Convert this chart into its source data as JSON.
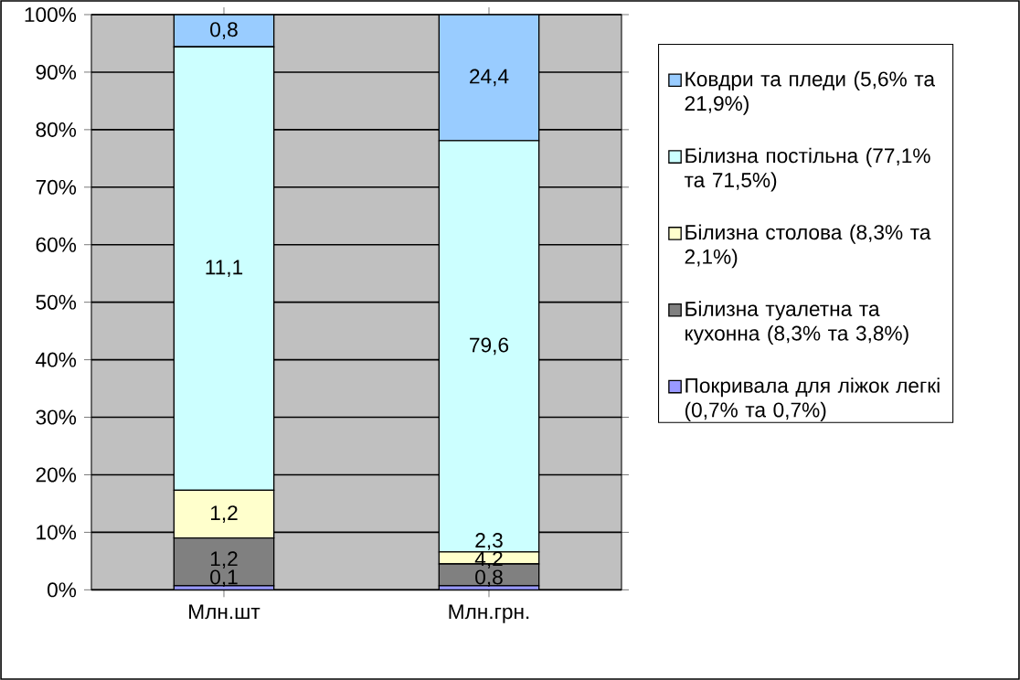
{
  "chart_data": {
    "type": "bar",
    "stacked": true,
    "categories": [
      "Млн.шт",
      "Млн.грн."
    ],
    "series": [
      {
        "name": "Покривала для ліжок легкі (0,7% та 0,7%)",
        "color": "#9999ff",
        "values": [
          0.7,
          0.7
        ]
      },
      {
        "name": "Білизна туалетна та кухонна (8,3% та 3,8%)",
        "color": "#808080",
        "values": [
          8.3,
          3.8
        ]
      },
      {
        "name": "Білизна столова (8,3% та 2,1%)",
        "color": "#ffffcc",
        "values": [
          8.3,
          2.1
        ]
      },
      {
        "name": "Білизна постільна (77,1% та 71,5%)",
        "color": "#ccffff",
        "values": [
          77.1,
          71.5
        ]
      },
      {
        "name": "Ковдри та пледи (5,6% та 21,9%)",
        "color": "#99ccff",
        "values": [
          5.6,
          21.9
        ]
      }
    ],
    "annotations": [
      "0,1",
      "1,2",
      "1,2",
      "11,1",
      "0,8",
      "0,8",
      "4,2",
      "2,3",
      "79,6",
      "24,4"
    ],
    "ylim": [
      0,
      100
    ],
    "yticks": [
      {
        "value": 0,
        "label": "0%"
      },
      {
        "value": 10,
        "label": "10%"
      },
      {
        "value": 20,
        "label": "20%"
      },
      {
        "value": 30,
        "label": "30%"
      },
      {
        "value": 40,
        "label": "40%"
      },
      {
        "value": 50,
        "label": "50%"
      },
      {
        "value": 60,
        "label": "60%"
      },
      {
        "value": 70,
        "label": "70%"
      },
      {
        "value": 80,
        "label": "80%"
      },
      {
        "value": 90,
        "label": "90%"
      },
      {
        "value": 100,
        "label": "100%"
      }
    ],
    "grid": "y",
    "legend": "right"
  }
}
